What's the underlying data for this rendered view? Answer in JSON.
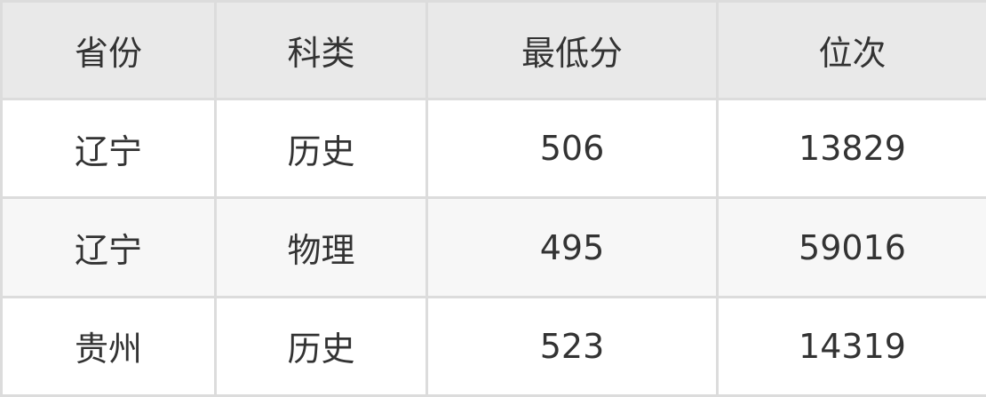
{
  "table": {
    "headers": [
      "省份",
      "科类",
      "最低分",
      "位次"
    ],
    "rows": [
      [
        "辽宁",
        "历史",
        "506",
        "13829"
      ],
      [
        "辽宁",
        "物理",
        "495",
        "59016"
      ],
      [
        "贵州",
        "历史",
        "523",
        "14319"
      ]
    ]
  }
}
